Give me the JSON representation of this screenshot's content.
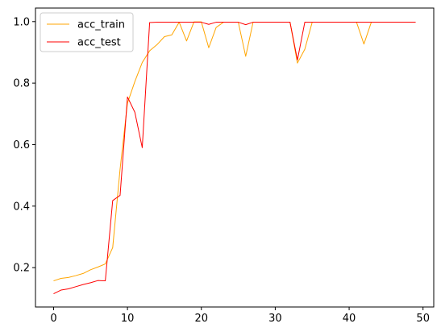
{
  "chart_data": {
    "type": "line",
    "title": "",
    "xlabel": "",
    "ylabel": "",
    "xlim": [
      -2.45,
      51.45
    ],
    "ylim": [
      0.072,
      1.044
    ],
    "x_ticks": [
      0,
      10,
      20,
      30,
      40,
      50
    ],
    "y_ticks": [
      0.2,
      0.4,
      0.6,
      0.8,
      1.0
    ],
    "x_tick_labels": [
      "0",
      "10",
      "20",
      "30",
      "40",
      "50"
    ],
    "y_tick_labels": [
      "0.2",
      "0.4",
      "0.6",
      "0.8",
      "1.0"
    ],
    "grid": false,
    "legend_position": "top-left",
    "x": [
      0,
      1,
      2,
      3,
      4,
      5,
      6,
      7,
      8,
      9,
      10,
      11,
      12,
      13,
      14,
      15,
      16,
      17,
      18,
      19,
      20,
      21,
      22,
      23,
      24,
      25,
      26,
      27,
      28,
      29,
      30,
      31,
      32,
      33,
      34,
      35,
      36,
      37,
      38,
      39,
      40,
      41,
      42,
      43,
      44,
      45,
      46,
      47,
      48,
      49
    ],
    "series": [
      {
        "name": "acc_train",
        "color": "#ffa500",
        "values": [
          0.157,
          0.165,
          0.168,
          0.174,
          0.181,
          0.193,
          0.202,
          0.212,
          0.265,
          0.52,
          0.735,
          0.805,
          0.867,
          0.905,
          0.925,
          0.951,
          0.957,
          0.998,
          0.937,
          0.999,
          0.999,
          0.915,
          0.981,
          0.998,
          0.998,
          0.998,
          0.887,
          0.998,
          0.998,
          0.998,
          0.998,
          0.998,
          0.998,
          0.865,
          0.91,
          0.998,
          0.998,
          0.998,
          0.998,
          0.998,
          0.998,
          0.998,
          0.927,
          0.998,
          0.998,
          0.998,
          0.998,
          0.998,
          0.998,
          0.998
        ]
      },
      {
        "name": "acc_test",
        "color": "#ff0000",
        "values": [
          0.115,
          0.127,
          0.131,
          0.138,
          0.145,
          0.151,
          0.158,
          0.157,
          0.418,
          0.435,
          0.755,
          0.705,
          0.59,
          0.997,
          0.998,
          0.998,
          0.998,
          0.998,
          0.998,
          0.998,
          0.998,
          0.991,
          0.998,
          0.998,
          0.998,
          0.998,
          0.99,
          0.998,
          0.998,
          0.998,
          0.998,
          0.998,
          0.998,
          0.875,
          0.998,
          0.998,
          0.998,
          0.998,
          0.998,
          0.998,
          0.998,
          0.998,
          0.998,
          0.998,
          0.998,
          0.998,
          0.998,
          0.998,
          0.998,
          0.998
        ]
      }
    ]
  }
}
